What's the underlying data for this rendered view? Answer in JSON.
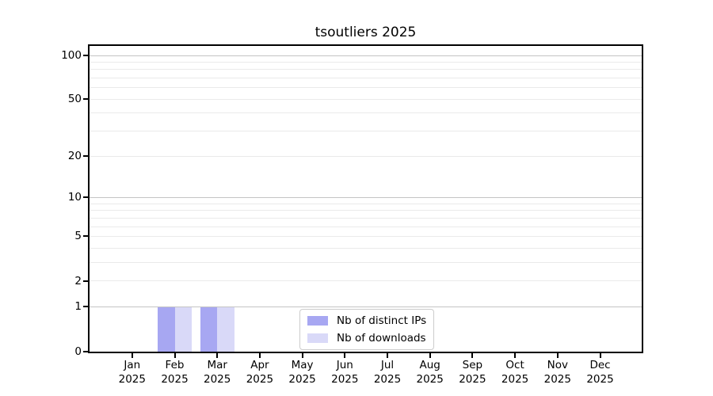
{
  "chart_data": {
    "type": "bar",
    "title": "tsoutliers 2025",
    "categories": [
      "Jan",
      "Feb",
      "Mar",
      "Apr",
      "May",
      "Jun",
      "Jul",
      "Aug",
      "Sep",
      "Oct",
      "Nov",
      "Dec"
    ],
    "x_year_label": "2025",
    "series": [
      {
        "name": "Nb of distinct IPs",
        "color": "#a7a7f2",
        "values": [
          0,
          1,
          1,
          0,
          0,
          0,
          0,
          0,
          0,
          0,
          0,
          0
        ]
      },
      {
        "name": "Nb of downloads",
        "color": "#d9d9f8",
        "values": [
          0,
          1,
          1,
          0,
          0,
          0,
          0,
          0,
          0,
          0,
          0,
          0
        ]
      }
    ],
    "y_scale": "log1p",
    "ylim": [
      0,
      100
    ],
    "y_tick_labels": [
      100,
      50,
      20,
      10,
      5,
      2,
      1,
      0
    ],
    "y_gridlines": [
      1,
      2,
      3,
      4,
      5,
      6,
      7,
      8,
      9,
      10,
      20,
      30,
      40,
      50,
      60,
      70,
      80,
      90,
      100
    ],
    "y_major_gridlines": [
      1,
      10,
      100
    ],
    "grid": true,
    "legend": {
      "position": "lower center",
      "entries": [
        "Nb of distinct IPs",
        "Nb of downloads"
      ]
    },
    "colors": {
      "axis": "#000000",
      "grid_minor": "#eaeaea",
      "grid_major": "#c4c4c4",
      "bar_distinct_ips": "#a7a7f2",
      "bar_downloads": "#d9d9f8",
      "legend_border": "#cccccc",
      "background": "#ffffff"
    }
  }
}
